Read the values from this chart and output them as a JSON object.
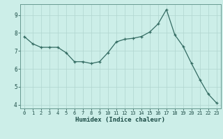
{
  "x": [
    0,
    1,
    2,
    3,
    4,
    5,
    6,
    7,
    8,
    9,
    10,
    11,
    12,
    13,
    14,
    15,
    16,
    17,
    18,
    19,
    20,
    21,
    22,
    23
  ],
  "y": [
    7.8,
    7.4,
    7.2,
    7.2,
    7.2,
    6.9,
    6.4,
    6.4,
    6.3,
    6.4,
    6.9,
    7.5,
    7.65,
    7.7,
    7.8,
    8.05,
    8.5,
    9.3,
    7.9,
    7.25,
    6.3,
    5.4,
    4.6,
    4.1
  ],
  "xlabel": "Humidex (Indice chaleur)",
  "ylim": [
    3.8,
    9.6
  ],
  "xlim": [
    -0.5,
    23.5
  ],
  "yticks": [
    4,
    5,
    6,
    7,
    8,
    9
  ],
  "xticks": [
    0,
    1,
    2,
    3,
    4,
    5,
    6,
    7,
    8,
    9,
    10,
    11,
    12,
    13,
    14,
    15,
    16,
    17,
    18,
    19,
    20,
    21,
    22,
    23
  ],
  "line_color": "#336b62",
  "bg_color": "#cceee8",
  "grid_color": "#b0d5cf",
  "spine_color": "#669990",
  "text_color": "#1a4a44",
  "xlabel_fontsize": 6.5,
  "tick_fontsize": 5.0
}
